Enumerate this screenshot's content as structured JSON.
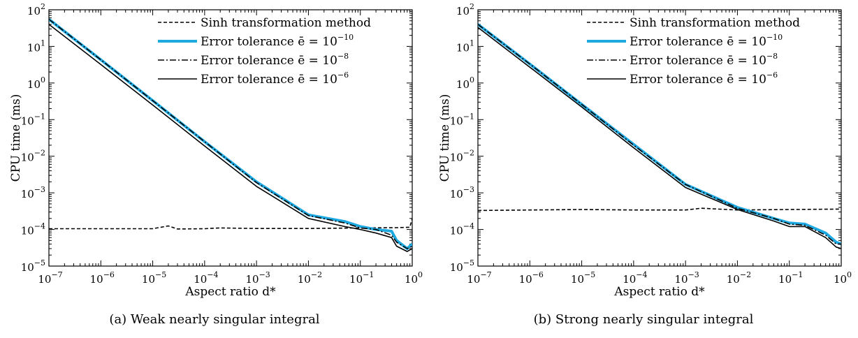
{
  "chart_data": [
    {
      "type": "line",
      "panel": "a",
      "caption": "(a) Weak nearly singular integral",
      "xlabel": "Aspect ratio d*",
      "ylabel": "CPU time (ms)",
      "xscale": "log",
      "yscale": "log",
      "xlim": [
        1e-07,
        1
      ],
      "ylim": [
        1e-05,
        100
      ],
      "x_ticks": [
        "10^-7",
        "10^-6",
        "10^-5",
        "10^-4",
        "10^-3",
        "10^-2",
        "10^-1",
        "10^0"
      ],
      "y_ticks": [
        "10^-5",
        "10^-4",
        "10^-3",
        "10^-2",
        "10^-1",
        "10^0",
        "10^1",
        "10^2"
      ],
      "grid": false,
      "legend_position": "top-right",
      "series": [
        {
          "name": "Sinh transformation method",
          "style": "dashed",
          "color": "#000000",
          "x": [
            1e-07,
            1e-06,
            1e-05,
            2e-05,
            3e-05,
            0.0001,
            0.0002,
            0.001,
            0.01,
            0.1,
            0.5,
            0.9,
            1.0
          ],
          "y": [
            0.000105,
            0.000105,
            0.000105,
            0.000125,
            0.000103,
            0.000105,
            0.00011,
            0.000106,
            0.000106,
            0.00011,
            0.000112,
            0.000115,
            0.0002
          ]
        },
        {
          "name": "Error tolerance ē = 10^-10",
          "style": "solid-thick",
          "color": "#1fa9e1",
          "x": [
            1e-07,
            1e-06,
            1e-05,
            0.0001,
            0.001,
            0.01,
            0.05,
            0.1,
            0.2,
            0.4,
            0.5,
            0.8,
            1.0
          ],
          "y": [
            55,
            4.3,
            0.33,
            0.025,
            0.002,
            0.00025,
            0.000165,
            0.00012,
            0.0001,
            9e-05,
            5e-05,
            3e-05,
            4e-05
          ]
        },
        {
          "name": "Error tolerance ē = 10^-8",
          "style": "dash-dot",
          "color": "#000000",
          "x": [
            1e-07,
            1e-06,
            1e-05,
            0.0001,
            0.001,
            0.01,
            0.05,
            0.1,
            0.2,
            0.4,
            0.5,
            0.8,
            1.0
          ],
          "y": [
            55,
            4.3,
            0.33,
            0.025,
            0.0019,
            0.00024,
            0.00015,
            0.00011,
            0.0001,
            7e-05,
            4.5e-05,
            3e-05,
            3.5e-05
          ]
        },
        {
          "name": "Error tolerance ē = 10^-6",
          "style": "solid",
          "color": "#000000",
          "x": [
            1e-07,
            1e-06,
            1e-05,
            0.0001,
            0.001,
            0.01,
            0.05,
            0.1,
            0.2,
            0.4,
            0.5,
            0.8,
            1.0
          ],
          "y": [
            40,
            3.2,
            0.25,
            0.019,
            0.0015,
            0.0002,
            0.00012,
            0.0001,
            8e-05,
            6e-05,
            3.5e-05,
            2.5e-05,
            3e-05
          ]
        }
      ]
    },
    {
      "type": "line",
      "panel": "b",
      "caption": "(b) Strong nearly singular integral",
      "xlabel": "Aspect ratio d*",
      "ylabel": "CPU time (ms)",
      "xscale": "log",
      "yscale": "log",
      "xlim": [
        1e-07,
        1
      ],
      "ylim": [
        1e-05,
        100
      ],
      "x_ticks": [
        "10^-7",
        "10^-6",
        "10^-5",
        "10^-4",
        "10^-3",
        "10^-2",
        "10^-1",
        "10^0"
      ],
      "y_ticks": [
        "10^-5",
        "10^-4",
        "10^-3",
        "10^-2",
        "10^-1",
        "10^0",
        "10^1",
        "10^2"
      ],
      "grid": false,
      "legend_position": "top-right",
      "series": [
        {
          "name": "Sinh transformation method",
          "style": "dashed",
          "color": "#000000",
          "x": [
            1e-07,
            1e-06,
            1e-05,
            0.0001,
            0.001,
            0.002,
            0.01,
            0.1,
            1.0
          ],
          "y": [
            0.00033,
            0.00034,
            0.00035,
            0.00034,
            0.00034,
            0.00038,
            0.00034,
            0.00035,
            0.00036
          ]
        },
        {
          "name": "Error tolerance ē = 10^-10",
          "style": "solid-thick",
          "color": "#1fa9e1",
          "x": [
            1e-07,
            1e-06,
            1e-05,
            0.0001,
            0.001,
            0.01,
            0.05,
            0.1,
            0.2,
            0.5,
            0.8,
            1.0
          ],
          "y": [
            40,
            3.3,
            0.26,
            0.021,
            0.0017,
            0.0004,
            0.0002,
            0.00015,
            0.00014,
            8e-05,
            4.5e-05,
            4e-05
          ]
        },
        {
          "name": "Error tolerance ē = 10^-8",
          "style": "dash-dot",
          "color": "#000000",
          "x": [
            1e-07,
            1e-06,
            1e-05,
            0.0001,
            0.001,
            0.01,
            0.05,
            0.1,
            0.2,
            0.5,
            0.8,
            1.0
          ],
          "y": [
            40,
            3.3,
            0.26,
            0.02,
            0.0017,
            0.00038,
            0.0002,
            0.00014,
            0.00013,
            7e-05,
            4e-05,
            4e-05
          ]
        },
        {
          "name": "Error tolerance ē = 10^-6",
          "style": "solid",
          "color": "#000000",
          "x": [
            1e-07,
            1e-06,
            1e-05,
            0.0001,
            0.001,
            0.01,
            0.05,
            0.1,
            0.2,
            0.5,
            0.8,
            1.0
          ],
          "y": [
            33,
            2.7,
            0.22,
            0.017,
            0.0014,
            0.00035,
            0.00017,
            0.00012,
            0.00012,
            6e-05,
            3.3e-05,
            3e-05
          ]
        }
      ]
    }
  ]
}
